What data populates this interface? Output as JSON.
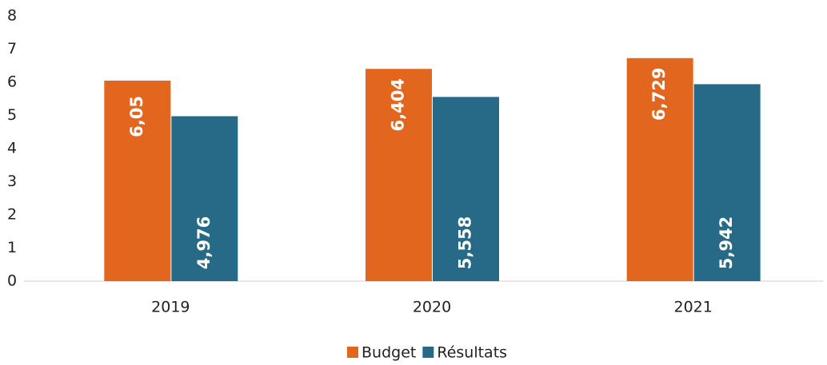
{
  "chart_data": {
    "type": "bar",
    "categories": [
      "2019",
      "2020",
      "2021"
    ],
    "series": [
      {
        "name": "Budget",
        "color": "#e3661f",
        "values": [
          6.05,
          6.404,
          6.729
        ],
        "value_labels": [
          "6,05",
          "6,404",
          "6,729"
        ]
      },
      {
        "name": "Résultats",
        "color": "#276a87",
        "values": [
          4.976,
          5.558,
          5.942
        ],
        "value_labels": [
          "4,976",
          "5,558",
          "5,942"
        ]
      }
    ],
    "ylim": [
      0,
      8
    ],
    "yticks": [
      0,
      1,
      2,
      3,
      4,
      5,
      6,
      7,
      8
    ],
    "grid": false,
    "legend": "bottom"
  }
}
